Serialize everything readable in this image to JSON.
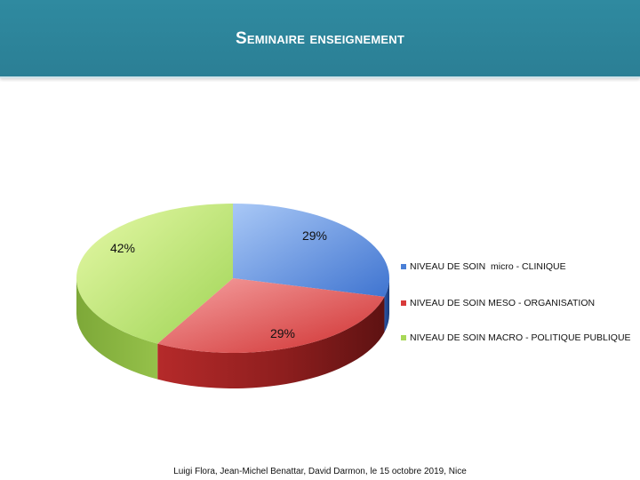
{
  "header": {
    "title": "Seminaire enseignement"
  },
  "chart_data": {
    "type": "pie",
    "categories": [
      "NIVEAU DE SOIN  micro - CLINIQUE",
      "NIVEAU DE SOIN MESO - ORGANISATION",
      "NIVEAU DE SOIN MACRO - POLITIQUE PUBLIQUE"
    ],
    "values": [
      29,
      29,
      42
    ],
    "labels": [
      "29%",
      "29%",
      "42%"
    ],
    "colors": [
      "#4a7fd6",
      "#d83a3a",
      "#a8d858"
    ],
    "legend_position": "right",
    "three_d": true
  },
  "footer": {
    "text": "Luigi Flora, Jean-Michel Benattar, David Darmon, le 15 octobre 2019, Nice"
  }
}
